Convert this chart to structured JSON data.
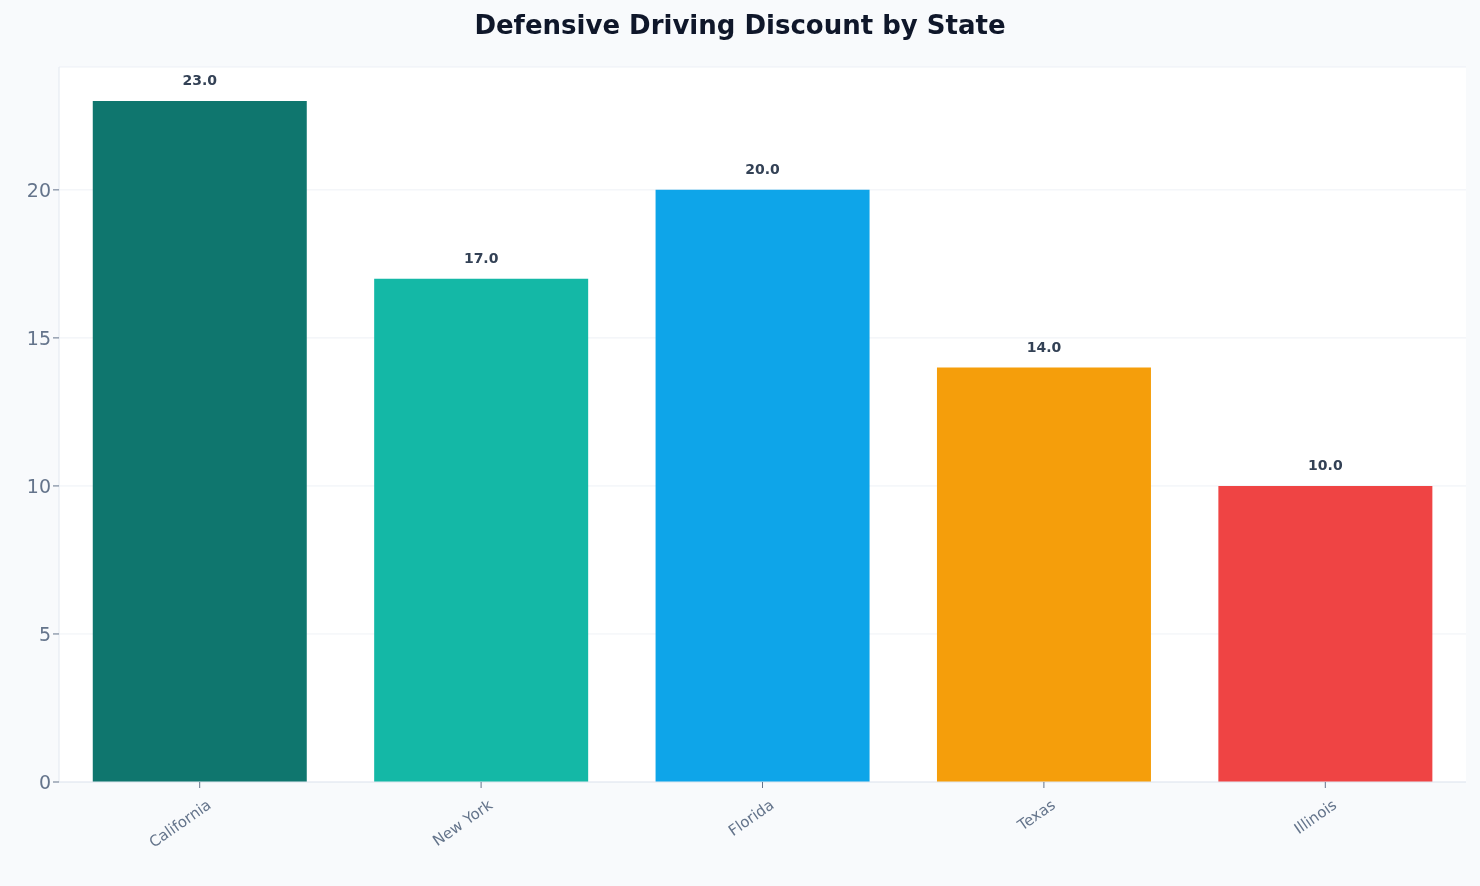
{
  "chart_data": {
    "type": "bar",
    "title": "Defensive Driving Discount by State",
    "categories": [
      "California",
      "New York",
      "Florida",
      "Texas",
      "Illinois"
    ],
    "values": [
      23,
      17,
      20,
      14,
      10
    ],
    "colors": [
      "#0f766e",
      "#14b8a6",
      "#0ea5e9",
      "#f59e0b",
      "#ef4444"
    ],
    "value_labels": [
      "23.0",
      "17.0",
      "20.0",
      "14.0",
      "10.0"
    ],
    "ylim": [
      0,
      24.15
    ],
    "yticks": [
      0,
      5,
      10,
      15,
      20
    ],
    "grid": "y"
  }
}
